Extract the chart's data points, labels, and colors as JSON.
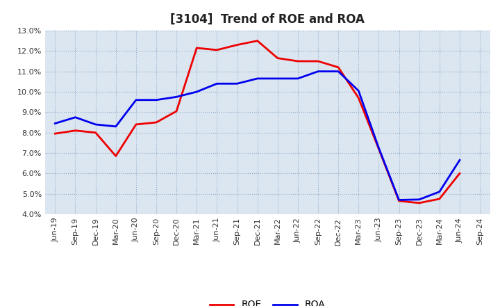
{
  "title": "[3104]  Trend of ROE and ROA",
  "ylim": [
    0.04,
    0.13
  ],
  "yticks": [
    0.04,
    0.05,
    0.06,
    0.07,
    0.08,
    0.09,
    0.1,
    0.11,
    0.12,
    0.13
  ],
  "xtick_labels": [
    "Jun-19",
    "Sep-19",
    "Dec-19",
    "Mar-20",
    "Jun-20",
    "Sep-20",
    "Dec-20",
    "Mar-21",
    "Jun-21",
    "Sep-21",
    "Dec-21",
    "Mar-22",
    "Jun-22",
    "Sep-22",
    "Dec-22",
    "Mar-23",
    "Jun-23",
    "Sep-23",
    "Dec-23",
    "Mar-24",
    "Jun-24",
    "Sep-24"
  ],
  "roe": [
    0.0795,
    0.081,
    0.08,
    0.0685,
    0.084,
    0.085,
    0.0905,
    0.1215,
    0.1205,
    0.123,
    0.125,
    0.1165,
    0.115,
    0.115,
    0.112,
    0.097,
    0.072,
    0.0465,
    0.0455,
    0.0475,
    0.06,
    null
  ],
  "roa": [
    0.0845,
    0.0875,
    0.084,
    0.083,
    0.096,
    0.096,
    0.0975,
    0.1,
    0.104,
    0.104,
    0.1065,
    0.1065,
    0.1065,
    0.11,
    0.11,
    0.1005,
    0.0725,
    0.047,
    0.0472,
    0.051,
    0.0665,
    null
  ],
  "roe_color": "#ee0000",
  "roa_color": "#0000ee",
  "line_width": 2.0,
  "legend_labels": [
    "ROE",
    "ROA"
  ],
  "background_color": "#ffffff",
  "plot_bg_color": "#dce6f1",
  "grid_color": "#7f9fbf",
  "title_fontsize": 12,
  "tick_fontsize": 8
}
